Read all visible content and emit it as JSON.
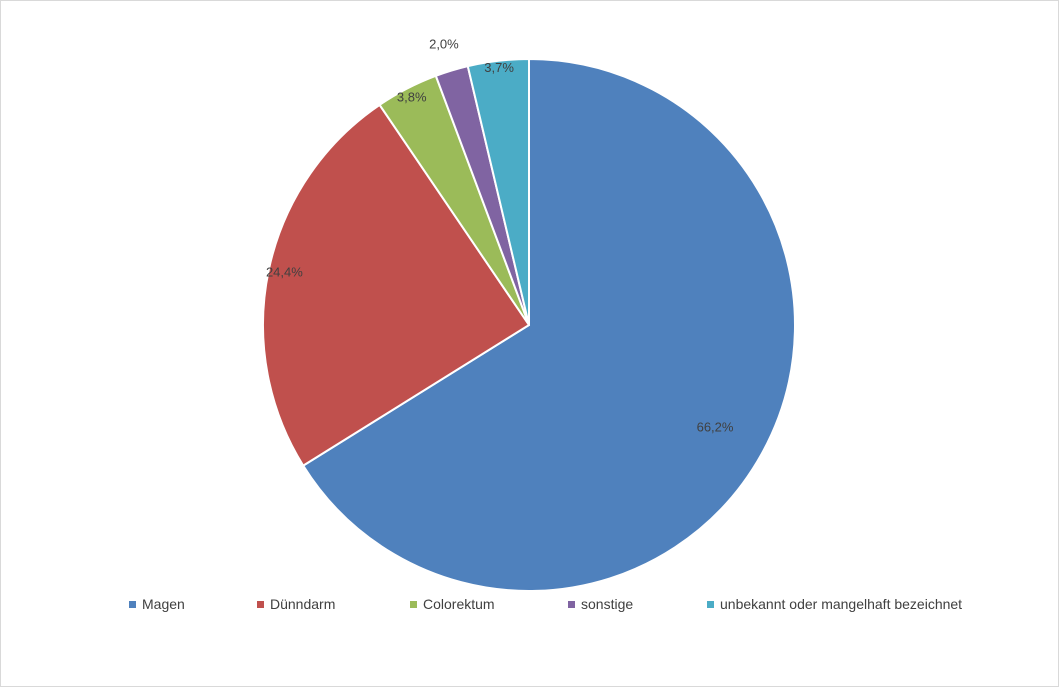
{
  "chart_data": {
    "type": "pie",
    "start_angle_deg": 0,
    "direction": "clockwise",
    "legend_position": "bottom",
    "slices": [
      {
        "name": "Magen",
        "value": 66.2,
        "label": "66,2%",
        "color": "#4F81BD"
      },
      {
        "name": "Dünndarm",
        "value": 24.4,
        "label": "24,4%",
        "color": "#C0504D"
      },
      {
        "name": "Colorektum",
        "value": 3.8,
        "label": "3,8%",
        "color": "#9BBB59"
      },
      {
        "name": "sonstige",
        "value": 2.0,
        "label": "2,0%",
        "color": "#8064A2"
      },
      {
        "name": "unbekannt oder mangelhaft bezeichnet",
        "value": 3.7,
        "label": "3,7%",
        "color": "#4BACC6"
      }
    ]
  }
}
